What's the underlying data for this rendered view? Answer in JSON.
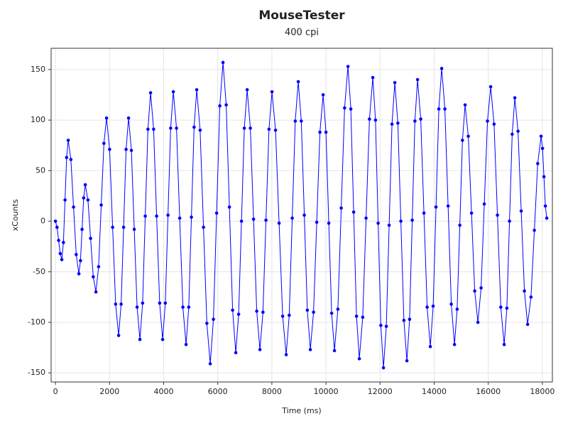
{
  "chart_data": {
    "type": "line",
    "title": "MouseTester",
    "subtitle": "400 cpi",
    "x_label": "Time (ms)",
    "y_label": "xCounts",
    "x": [
      0,
      59,
      118,
      177,
      236,
      295,
      354,
      413,
      472,
      571,
      669,
      768,
      866,
      925,
      984,
      1043,
      1102,
      1201,
      1299,
      1398,
      1496,
      1595,
      1693,
      1792,
      1890,
      2002,
      2113,
      2225,
      2336,
      2428,
      2520,
      2611,
      2703,
      2808,
      2913,
      3018,
      3123,
      3222,
      3320,
      3419,
      3517,
      3629,
      3740,
      3852,
      3963,
      4062,
      4160,
      4259,
      4357,
      4475,
      4593,
      4711,
      4829,
      4928,
      5026,
      5125,
      5223,
      5348,
      5473,
      5597,
      5722,
      5840,
      5958,
      6076,
      6194,
      6312,
      6431,
      6549,
      6667,
      6772,
      6877,
      6982,
      7087,
      7205,
      7323,
      7441,
      7559,
      7671,
      7782,
      7894,
      8005,
      8136,
      8268,
      8399,
      8530,
      8642,
      8753,
      8865,
      8976,
      9088,
      9200,
      9311,
      9423,
      9541,
      9659,
      9777,
      9895,
      10000,
      10105,
      10210,
      10315,
      10440,
      10565,
      10689,
      10814,
      10919,
      11024,
      11129,
      11234,
      11359,
      11483,
      11608,
      11732,
      11831,
      11929,
      12028,
      12126,
      12231,
      12336,
      12441,
      12546,
      12658,
      12769,
      12881,
      12992,
      13091,
      13189,
      13288,
      13386,
      13504,
      13622,
      13740,
      13858,
      13963,
      14068,
      14173,
      14278,
      14396,
      14515,
      14633,
      14751,
      14849,
      14948,
      15046,
      15144,
      15262,
      15381,
      15499,
      15617,
      15735,
      15853,
      15971,
      16089,
      16214,
      16339,
      16463,
      16588,
      16687,
      16785,
      16884,
      16982,
      17100,
      17218,
      17336,
      17454,
      17579,
      17704,
      17828,
      17953,
      18006,
      18058,
      18111,
      18163
    ],
    "series": [
      {
        "color": "#0000ff",
        "values": [
          0,
          -6,
          -19,
          -32,
          -38,
          -21,
          21,
          63,
          80,
          61,
          14,
          -33,
          -52,
          -39,
          -8,
          23,
          36,
          21,
          -17,
          -55,
          -70,
          -45,
          16,
          77,
          102,
          71,
          -6,
          -82,
          -113,
          -82,
          -6,
          71,
          102,
          70,
          -8,
          -85,
          -117,
          -81,
          5,
          91,
          127,
          91,
          5,
          -81,
          -117,
          -81,
          6,
          92,
          128,
          92,
          3,
          -85,
          -122,
          -85,
          4,
          93,
          130,
          90,
          -6,
          -101,
          -141,
          -97,
          8,
          114,
          157,
          115,
          14,
          -88,
          -130,
          -92,
          0,
          92,
          130,
          92,
          2,
          -89,
          -127,
          -90,
          1,
          91,
          128,
          90,
          -2,
          -94,
          -132,
          -93,
          3,
          99,
          138,
          99,
          6,
          -88,
          -127,
          -90,
          -1,
          88,
          125,
          88,
          -2,
          -91,
          -128,
          -87,
          13,
          112,
          153,
          111,
          9,
          -94,
          -136,
          -95,
          3,
          101,
          142,
          100,
          -2,
          -103,
          -145,
          -104,
          -4,
          96,
          137,
          97,
          0,
          -98,
          -138,
          -97,
          1,
          99,
          140,
          101,
          8,
          -85,
          -124,
          -84,
          14,
          111,
          151,
          111,
          15,
          -82,
          -122,
          -87,
          -4,
          80,
          115,
          84,
          8,
          -69,
          -100,
          -66,
          17,
          99,
          133,
          96,
          6,
          -85,
          -122,
          -86,
          0,
          86,
          122,
          89,
          10,
          -69,
          -102,
          -75,
          -9,
          57,
          84,
          72,
          44,
          15,
          3
        ]
      }
    ],
    "xlim": [
      -160,
      18370
    ],
    "ylim": [
      -159,
      171
    ],
    "xticks": [
      0,
      2000,
      4000,
      6000,
      8000,
      10000,
      12000,
      14000,
      16000,
      18000
    ],
    "yticks": [
      -150,
      -100,
      -50,
      0,
      50,
      100,
      150
    ],
    "grid": true
  }
}
